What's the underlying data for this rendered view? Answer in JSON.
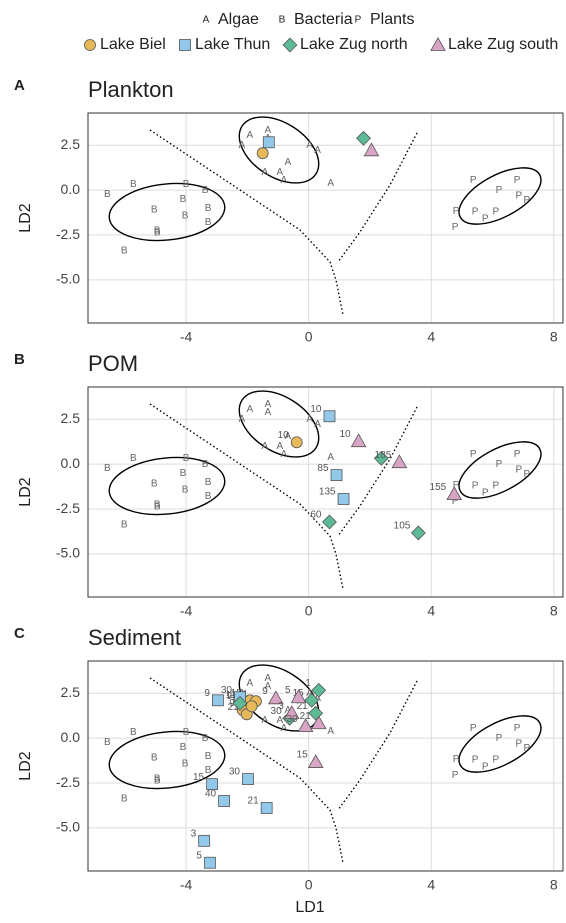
{
  "chart_data": {
    "type": "scatter",
    "xlabel": "LD1",
    "ylabel": "LD2",
    "xlim": [
      -7.2,
      8.3
    ],
    "ylim": [
      -7.4,
      4.3
    ],
    "xticks": [
      -4,
      0,
      4,
      8
    ],
    "yticks": [
      2.5,
      {
        "value": 0,
        "label": "0.0"
      },
      -2.5,
      {
        "value": -5,
        "label": "-5.0"
      }
    ],
    "grid": true,
    "groups": [
      {
        "symbol": "A",
        "name": "Algae"
      },
      {
        "symbol": "B",
        "name": "Bacteria"
      },
      {
        "symbol": "P",
        "name": "Plants"
      }
    ],
    "lakes": [
      {
        "name": "Lake Biel",
        "color": "#e8b95a",
        "shape": "circle"
      },
      {
        "name": "Lake Thun",
        "color": "#92c8ea",
        "shape": "square"
      },
      {
        "name": "Lake Zug north",
        "color": "#5dba95",
        "shape": "diamond"
      },
      {
        "name": "Lake Zug south",
        "color": "#d9a5c6",
        "shape": "triangle"
      }
    ],
    "reference": [
      {
        "x": [
          -1.92,
          -1.33,
          -1.33,
          -2.18,
          0.03,
          0.29,
          -0.68,
          -1.43,
          -0.94,
          -0.81,
          0.72
        ],
        "y": [
          3.06,
          3.33,
          2.89,
          2.5,
          2.5,
          2.22,
          1.56,
          1.0,
          1.0,
          0.56,
          0.39
        ]
      },
      {
        "x": [
          -6.57,
          -5.72,
          -4.0,
          -3.38,
          -5.04,
          -4.1,
          -3.28,
          -4.03,
          -3.28,
          -4.94,
          -4.94,
          -6.02
        ],
        "y": [
          -0.22,
          0.33,
          0.33,
          0,
          -1.11,
          -0.5,
          -1.0,
          -1.44,
          -1.78,
          -2.28,
          -2.39,
          -3.39
        ]
      },
      {
        "x": [
          5.37,
          6.8,
          6.21,
          6.86,
          7.12,
          4.81,
          5.43,
          6.11,
          5.76,
          4.78
        ],
        "y": [
          0.56,
          0.56,
          0,
          -0.33,
          -0.56,
          -1.17,
          -1.22,
          -1.22,
          -1.61,
          -2.06
        ]
      }
    ],
    "panels": [
      {
        "label": "A",
        "title": "Plankton",
        "samples": [
          {
            "x": [
              -1.5
            ],
            "y": [
              2.06
            ]
          },
          {
            "x": [
              -1.3
            ],
            "y": [
              2.67
            ]
          },
          {
            "x": [
              1.79
            ],
            "y": [
              2.89
            ]
          },
          {
            "x": [
              2.05
            ],
            "y": [
              2.22
            ]
          }
        ]
      },
      {
        "label": "B",
        "title": "POM",
        "samples": [
          {
            "x": [
              -0.39
            ],
            "y": [
              1.22
            ],
            "labels": [
              10
            ]
          },
          {
            "x": [
              0.68,
              0.91,
              1.14
            ],
            "y": [
              2.67,
              -0.61,
              -1.94
            ],
            "labels": [
              10,
              85,
              135
            ]
          },
          {
            "x": [
              2.37,
              0.68,
              3.58
            ],
            "y": [
              0.33,
              -3.22,
              -3.83
            ],
            "labels": [
              null,
              60,
              105
            ]
          },
          {
            "x": [
              1.63,
              2.96,
              4.75
            ],
            "y": [
              1.28,
              0.11,
              -1.67
            ],
            "labels": [
              10,
              185,
              155
            ]
          }
        ]
      },
      {
        "label": "C",
        "title": "Sediment",
        "samples": [
          {
            "x": [
              -2.11,
              -1.92,
              -1.72,
              -2.15,
              -2.02,
              -1.86
            ],
            "y": [
              2.0,
              2.11,
              2.06,
              1.56,
              1.33,
              1.78
            ],
            "labels": [
              11,
              15,
              1,
              9,
              21,
              40
            ]
          },
          {
            "x": [
              -2.96,
              -2.24,
              -3.15,
              -2.76,
              -1.98,
              -1.37,
              -3.41,
              -3.22
            ],
            "y": [
              2.11,
              2.28,
              -2.56,
              -3.5,
              -2.28,
              -3.89,
              -5.72,
              -6.94
            ],
            "labels": [
              9,
              30,
              15,
              40,
              30,
              21,
              3,
              5
            ]
          },
          {
            "x": [
              -2.24,
              -0.62,
              0.1,
              0.33,
              0.23
            ],
            "y": [
              1.94,
              1.11,
              2.11,
              2.67,
              1.39
            ],
            "labels": [
              9,
              30,
              15,
              1,
              21
            ]
          },
          {
            "x": [
              -1.07,
              -0.33,
              -0.55,
              0.33,
              -0.1,
              0.23
            ],
            "y": [
              2.22,
              2.28,
              1.39,
              0.83,
              0.67,
              -1.33
            ],
            "labels": [
              9,
              5,
              3,
              21,
              30,
              15
            ]
          }
        ]
      }
    ]
  }
}
